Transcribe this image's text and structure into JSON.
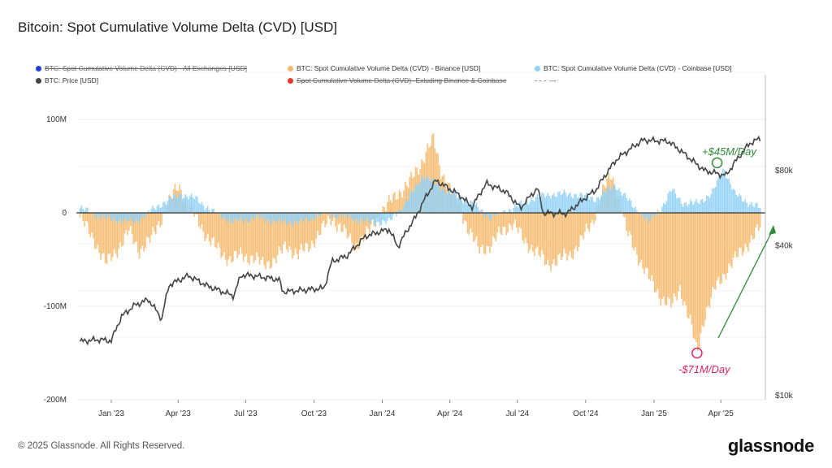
{
  "title": "Bitcoin: Spot Cumulative Volume Delta (CVD) [USD]",
  "legend": [
    {
      "label": "BTC: Spot Cumulative Volume Delta (CVD) - All Exchanges [USD]",
      "color": "#1f3fd6",
      "disabled": true
    },
    {
      "label": "BTC: Spot Cumulative Volume Delta (CVD) - Binance [USD]",
      "color": "#f7b96b",
      "disabled": false
    },
    {
      "label": "BTC: Spot Cumulative Volume Delta (CVD) - Coinbase [USD]",
      "color": "#8fd0f7",
      "disabled": false
    },
    {
      "label": "BTC: Price [USD]",
      "color": "#444444",
      "disabled": false
    },
    {
      "label": "Spot Cumulative Volume Delta (CVD)- Exluding Binance & Coinbase",
      "color": "#e53a2a",
      "disabled": true
    },
    {
      "label": "---",
      "color": "#999999",
      "disabled": false,
      "dashed": true
    }
  ],
  "chart_data": {
    "type": "area",
    "x_ticks": [
      "Jan '23",
      "Apr '23",
      "Jul '23",
      "Oct '23",
      "Jan '24",
      "Apr '24",
      "Jul '24",
      "Oct '24",
      "Jan '25",
      "Apr '25"
    ],
    "y_left": {
      "ticks": [
        "100M",
        "0",
        "-100M",
        "-200M"
      ],
      "values": [
        100,
        0,
        -100,
        -200
      ],
      "range": [
        -200,
        100
      ]
    },
    "y_right": {
      "ticks": [
        "$80k",
        "$40k",
        "$10k"
      ],
      "values": [
        80000,
        40000,
        10000
      ],
      "scale": "log"
    },
    "grid": true,
    "series": [
      {
        "name": "BTC: Spot Cumulative Volume Delta (CVD) - Binance [USD]",
        "color": "#f7b96b",
        "points": [
          [
            "2022-11-20",
            -5
          ],
          [
            "2022-12-10",
            -30
          ],
          [
            "2022-12-25",
            -55
          ],
          [
            "2023-01-08",
            -40
          ],
          [
            "2023-01-25",
            -20
          ],
          [
            "2023-02-08",
            -40
          ],
          [
            "2023-02-22",
            -30
          ],
          [
            "2023-03-10",
            -5
          ],
          [
            "2023-03-22",
            15
          ],
          [
            "2023-04-02",
            30
          ],
          [
            "2023-04-12",
            10
          ],
          [
            "2023-04-25",
            -5
          ],
          [
            "2023-05-10",
            -25
          ],
          [
            "2023-05-25",
            -40
          ],
          [
            "2023-06-10",
            -50
          ],
          [
            "2023-06-25",
            -45
          ],
          [
            "2023-07-10",
            -48
          ],
          [
            "2023-07-25",
            -55
          ],
          [
            "2023-08-10",
            -50
          ],
          [
            "2023-08-25",
            -35
          ],
          [
            "2023-09-10",
            -45
          ],
          [
            "2023-09-25",
            -35
          ],
          [
            "2023-10-10",
            -20
          ],
          [
            "2023-10-25",
            -5
          ],
          [
            "2023-11-10",
            -20
          ],
          [
            "2023-11-25",
            -35
          ],
          [
            "2023-12-10",
            -25
          ],
          [
            "2023-12-25",
            -5
          ],
          [
            "2024-01-05",
            5
          ],
          [
            "2024-01-20",
            20
          ],
          [
            "2024-02-05",
            30
          ],
          [
            "2024-02-20",
            50
          ],
          [
            "2024-03-03",
            70
          ],
          [
            "2024-03-10",
            78
          ],
          [
            "2024-03-20",
            45
          ],
          [
            "2024-04-05",
            20
          ],
          [
            "2024-04-15",
            5
          ],
          [
            "2024-04-25",
            -15
          ],
          [
            "2024-05-10",
            -40
          ],
          [
            "2024-05-25",
            -35
          ],
          [
            "2024-06-10",
            -20
          ],
          [
            "2024-06-25",
            -10
          ],
          [
            "2024-07-10",
            -30
          ],
          [
            "2024-07-25",
            -40
          ],
          [
            "2024-08-10",
            -55
          ],
          [
            "2024-08-25",
            -50
          ],
          [
            "2024-09-10",
            -45
          ],
          [
            "2024-09-25",
            -30
          ],
          [
            "2024-10-10",
            -10
          ],
          [
            "2024-10-25",
            25
          ],
          [
            "2024-11-05",
            40
          ],
          [
            "2024-11-15",
            15
          ],
          [
            "2024-11-25",
            -20
          ],
          [
            "2024-12-10",
            -45
          ],
          [
            "2024-12-25",
            -70
          ],
          [
            "2025-01-10",
            -90
          ],
          [
            "2025-01-25",
            -100
          ],
          [
            "2025-02-05",
            -80
          ],
          [
            "2025-02-20",
            -120
          ],
          [
            "2025-02-28",
            -150
          ],
          [
            "2025-03-10",
            -110
          ],
          [
            "2025-03-25",
            -80
          ],
          [
            "2025-04-10",
            -60
          ],
          [
            "2025-04-25",
            -45
          ],
          [
            "2025-05-10",
            -30
          ],
          [
            "2025-05-25",
            -15
          ]
        ]
      },
      {
        "name": "BTC: Spot Cumulative Volume Delta (CVD) - Coinbase [USD]",
        "color": "#8fd0f7",
        "points": [
          [
            "2022-11-20",
            5
          ],
          [
            "2022-12-20",
            -5
          ],
          [
            "2023-02-01",
            -10
          ],
          [
            "2023-03-10",
            10
          ],
          [
            "2023-04-05",
            20
          ],
          [
            "2023-04-25",
            15
          ],
          [
            "2023-05-20",
            0
          ],
          [
            "2023-06-15",
            -10
          ],
          [
            "2023-07-15",
            -5
          ],
          [
            "2023-08-15",
            -10
          ],
          [
            "2023-09-15",
            -10
          ],
          [
            "2023-10-15",
            0
          ],
          [
            "2023-11-15",
            -5
          ],
          [
            "2023-12-15",
            -10
          ],
          [
            "2024-01-10",
            -10
          ],
          [
            "2024-02-01",
            10
          ],
          [
            "2024-02-25",
            40
          ],
          [
            "2024-03-15",
            30
          ],
          [
            "2024-04-05",
            20
          ],
          [
            "2024-05-01",
            10
          ],
          [
            "2024-05-25",
            -5
          ],
          [
            "2024-06-25",
            5
          ],
          [
            "2024-07-20",
            15
          ],
          [
            "2024-08-15",
            20
          ],
          [
            "2024-09-15",
            20
          ],
          [
            "2024-10-15",
            15
          ],
          [
            "2024-11-10",
            30
          ],
          [
            "2024-12-01",
            10
          ],
          [
            "2024-12-25",
            -10
          ],
          [
            "2025-01-15",
            10
          ],
          [
            "2025-01-25",
            25
          ],
          [
            "2025-02-10",
            10
          ],
          [
            "2025-02-25",
            10
          ],
          [
            "2025-03-20",
            20
          ],
          [
            "2025-04-05",
            48
          ],
          [
            "2025-04-20",
            20
          ],
          [
            "2025-05-10",
            10
          ],
          [
            "2025-05-25",
            5
          ]
        ]
      },
      {
        "name": "BTC: Price [USD]",
        "color": "#444444",
        "axis": "right",
        "points": [
          [
            "2022-11-20",
            16500
          ],
          [
            "2022-12-15",
            16800
          ],
          [
            "2023-01-01",
            16600
          ],
          [
            "2023-01-15",
            20800
          ],
          [
            "2023-02-01",
            23000
          ],
          [
            "2023-02-20",
            24300
          ],
          [
            "2023-03-10",
            20300
          ],
          [
            "2023-03-20",
            27800
          ],
          [
            "2023-04-15",
            30300
          ],
          [
            "2023-05-10",
            27600
          ],
          [
            "2023-06-15",
            25100
          ],
          [
            "2023-06-25",
            30500
          ],
          [
            "2023-07-15",
            30200
          ],
          [
            "2023-08-15",
            29200
          ],
          [
            "2023-08-20",
            26100
          ],
          [
            "2023-09-15",
            26500
          ],
          [
            "2023-10-15",
            27000
          ],
          [
            "2023-10-25",
            34500
          ],
          [
            "2023-11-15",
            36500
          ],
          [
            "2023-12-10",
            43700
          ],
          [
            "2024-01-10",
            46600
          ],
          [
            "2024-01-22",
            39500
          ],
          [
            "2024-02-15",
            52000
          ],
          [
            "2024-03-13",
            73000
          ],
          [
            "2024-04-15",
            63500
          ],
          [
            "2024-05-01",
            57000
          ],
          [
            "2024-05-20",
            71000
          ],
          [
            "2024-06-15",
            66000
          ],
          [
            "2024-07-05",
            56500
          ],
          [
            "2024-07-28",
            68000
          ],
          [
            "2024-08-05",
            54000
          ],
          [
            "2024-09-06",
            53900
          ],
          [
            "2024-10-15",
            67000
          ],
          [
            "2024-11-12",
            89000
          ],
          [
            "2024-12-17",
            106000
          ],
          [
            "2025-01-20",
            105000
          ],
          [
            "2025-02-25",
            86000
          ],
          [
            "2025-03-10",
            80000
          ],
          [
            "2025-04-08",
            76500
          ],
          [
            "2025-05-10",
            103000
          ],
          [
            "2025-05-25",
            108000
          ]
        ]
      }
    ],
    "annotations": [
      {
        "text": "+$45M/Day",
        "color": "#2e8b3a"
      },
      {
        "text": "-$71M/Day",
        "color": "#e0245e"
      }
    ]
  },
  "footer": "© 2025 Glassnode. All Rights Reserved.",
  "brand": "glassnode"
}
